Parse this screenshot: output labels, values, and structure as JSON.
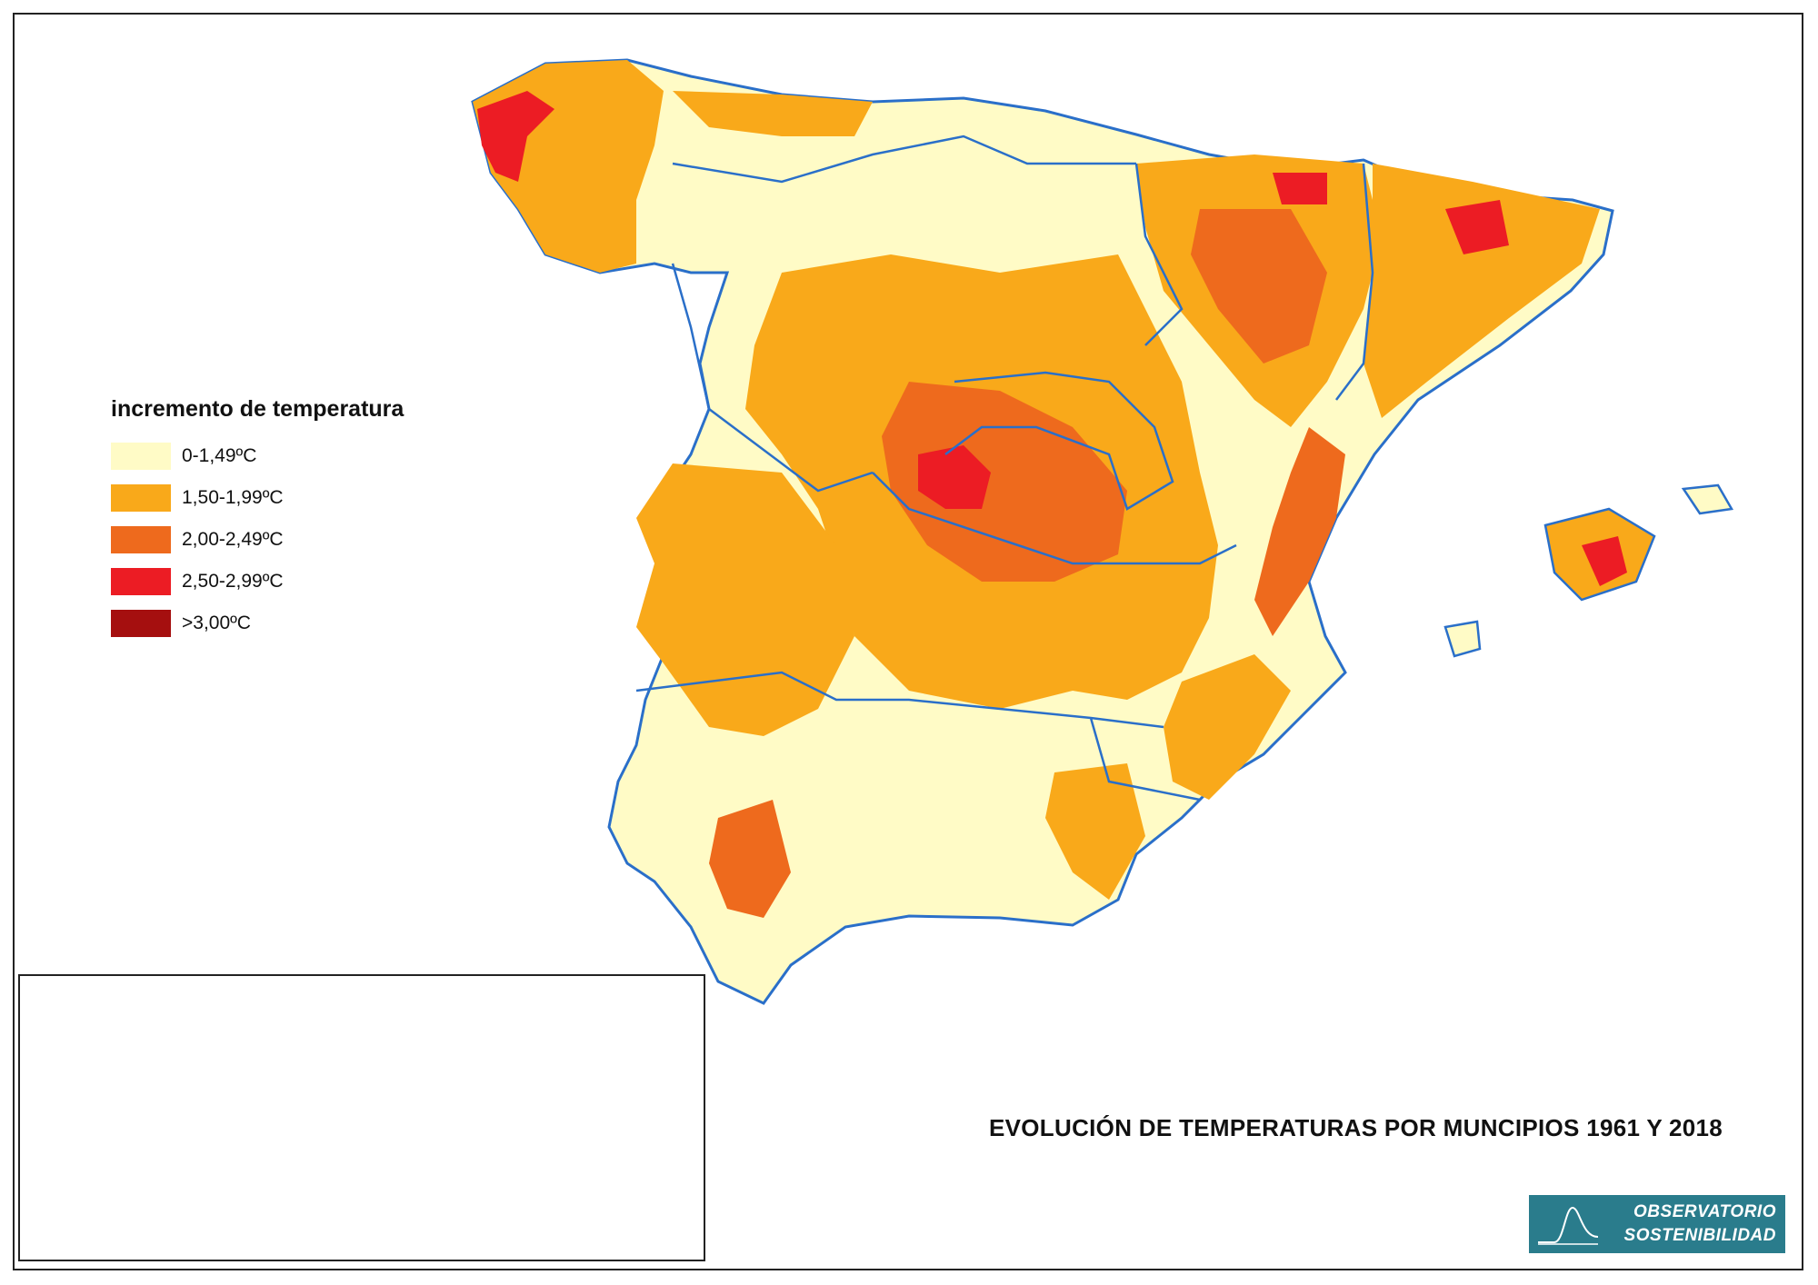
{
  "legend": {
    "title": "incremento de temperatura",
    "items": [
      {
        "label": "0-1,49ºC",
        "color": "#fffbc6"
      },
      {
        "label": "1,50-1,99ºC",
        "color": "#f9a91a"
      },
      {
        "label": "2,00-2,49ºC",
        "color": "#ee6a1d"
      },
      {
        "label": "2,50-2,99ºC",
        "color": "#ec1c24"
      },
      {
        "label": ">3,00ºC",
        "color": "#a50f0f"
      }
    ]
  },
  "title": "EVOLUCIÓN DE TEMPERATURAS POR MUNCIPIOS 1961 Y 2018",
  "logo": {
    "line1": "OBSERVATORIO",
    "line2": "SOSTENIBILIDAD"
  },
  "colors": {
    "border": "#2a6fc9",
    "frame": "#222222",
    "logo_bg": "#2a7c8c"
  }
}
